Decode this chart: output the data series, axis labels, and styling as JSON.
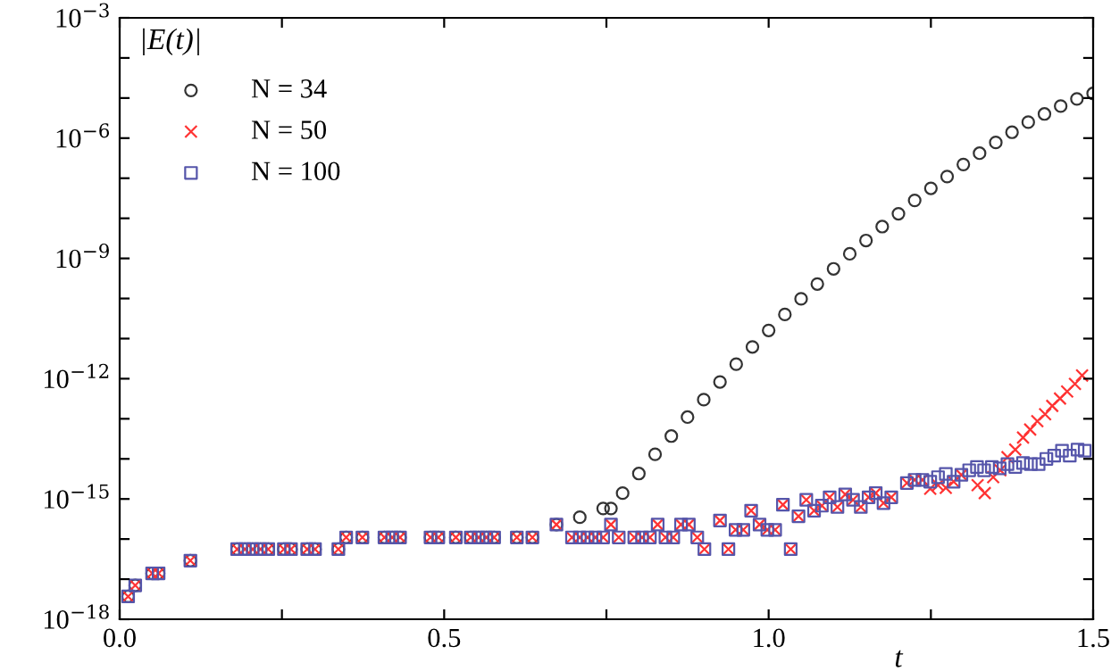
{
  "chart_data": {
    "type": "scatter",
    "xlabel": "t",
    "ylabel": "|E(t)|",
    "log": "y",
    "legend": "top left",
    "grid": false,
    "xlim": [
      0,
      1.5
    ],
    "xticks": [
      {
        "value": 0,
        "label": "0.0"
      },
      {
        "value": 0.25,
        "label": null
      },
      {
        "value": 0.5,
        "label": "0.5"
      },
      {
        "value": 0.75,
        "label": null
      },
      {
        "value": 1.0,
        "label": "1.0"
      },
      {
        "value": 1.25,
        "label": null
      },
      {
        "value": 1.5,
        "label": "1.5"
      }
    ],
    "ylim": [
      1e-18,
      0.001
    ],
    "yticks": [
      {
        "value": 1e-18,
        "label": "10$^{−18}$"
      },
      {
        "value": 1e-17,
        "label": null
      },
      {
        "value": 1e-16,
        "label": null
      },
      {
        "value": 1e-15,
        "label": "10$^{−15}$"
      },
      {
        "value": 1e-14,
        "label": null
      },
      {
        "value": 1e-13,
        "label": null
      },
      {
        "value": 1e-12,
        "label": "10$^{−12}$"
      },
      {
        "value": 1e-11,
        "label": null
      },
      {
        "value": 1e-10,
        "label": null
      },
      {
        "value": 1e-09,
        "label": "10$^{−9}$"
      },
      {
        "value": 1e-08,
        "label": null
      },
      {
        "value": 1e-07,
        "label": null
      },
      {
        "value": 1e-06,
        "label": "10$^{−6}$"
      },
      {
        "value": 1e-05,
        "label": null
      },
      {
        "value": 0.0001,
        "label": null
      },
      {
        "value": 0.001,
        "label": "10$^{−3}$"
      }
    ],
    "series": [
      {
        "name": "N = 34",
        "color": "#333333",
        "marker": "circle",
        "x": [
          0.013,
          0.024,
          0.05,
          0.06,
          0.109,
          0.181,
          0.193,
          0.205,
          0.217,
          0.229,
          0.253,
          0.264,
          0.289,
          0.301,
          0.337,
          0.349,
          0.374,
          0.408,
          0.42,
          0.432,
          0.479,
          0.491,
          0.518,
          0.541,
          0.553,
          0.565,
          0.577,
          0.612,
          0.636,
          0.673,
          0.709,
          0.745,
          0.757,
          0.775,
          0.8,
          0.825,
          0.85,
          0.875,
          0.9,
          0.925,
          0.95,
          0.975,
          1.0,
          1.025,
          1.05,
          1.075,
          1.1,
          1.125,
          1.15,
          1.175,
          1.2,
          1.225,
          1.25,
          1.275,
          1.3,
          1.325,
          1.35,
          1.375,
          1.4,
          1.425,
          1.45,
          1.475,
          1.5
        ],
        "values": [
          3.7e-18,
          7e-18,
          1.4e-17,
          1.4e-17,
          2.9e-17,
          5.6e-17,
          5.6e-17,
          5.6e-17,
          5.6e-17,
          5.6e-17,
          5.6e-17,
          5.6e-17,
          5.6e-17,
          5.6e-17,
          5.6e-17,
          1.1e-16,
          1.1e-16,
          1.1e-16,
          1.1e-16,
          1.1e-16,
          1.1e-16,
          1.1e-16,
          1.1e-16,
          1.1e-16,
          1.1e-16,
          1.1e-16,
          1.1e-16,
          1.1e-16,
          1.1e-16,
          2.3e-16,
          3.5e-16,
          5.8e-16,
          5.8e-16,
          1.4e-15,
          4.3e-15,
          1.3e-14,
          3.7e-14,
          1.1e-13,
          3e-13,
          8.3e-13,
          2.3e-12,
          6.2e-12,
          1.6e-11,
          4e-11,
          9.8e-11,
          2.3e-10,
          5.5e-10,
          1.3e-09,
          2.8e-09,
          6.2e-09,
          1.3e-08,
          2.8e-08,
          5.6e-08,
          1.1e-07,
          2.2e-07,
          4.2e-07,
          7.8e-07,
          1.4e-06,
          2.5e-06,
          4e-06,
          6.3e-06,
          9.5e-06,
          1.3e-05
        ]
      },
      {
        "name": "N = 50",
        "color": "#ff3333",
        "marker": "cross",
        "x": [
          0.013,
          0.024,
          0.05,
          0.06,
          0.109,
          0.181,
          0.193,
          0.205,
          0.217,
          0.229,
          0.253,
          0.264,
          0.289,
          0.301,
          0.337,
          0.349,
          0.374,
          0.408,
          0.42,
          0.432,
          0.479,
          0.491,
          0.518,
          0.541,
          0.553,
          0.565,
          0.577,
          0.612,
          0.636,
          0.673,
          0.697,
          0.709,
          0.721,
          0.733,
          0.745,
          0.757,
          0.769,
          0.793,
          0.805,
          0.817,
          0.829,
          0.841,
          0.853,
          0.865,
          0.877,
          0.89,
          0.901,
          0.925,
          0.938,
          0.949,
          0.961,
          0.973,
          0.986,
          0.998,
          1.01,
          1.022,
          1.034,
          1.046,
          1.058,
          1.07,
          1.082,
          1.094,
          1.106,
          1.118,
          1.13,
          1.142,
          1.154,
          1.165,
          1.177,
          1.189,
          1.213,
          1.225,
          1.237,
          1.249,
          1.261,
          1.273,
          1.285,
          1.297,
          1.322,
          1.333,
          1.346,
          1.357,
          1.368,
          1.38,
          1.392,
          1.403,
          1.414,
          1.426,
          1.437,
          1.449,
          1.46,
          1.472,
          1.483
        ],
        "values": [
          3.7e-18,
          7e-18,
          1.4e-17,
          1.4e-17,
          2.9e-17,
          5.6e-17,
          5.6e-17,
          5.6e-17,
          5.6e-17,
          5.6e-17,
          5.6e-17,
          5.6e-17,
          5.6e-17,
          5.6e-17,
          5.6e-17,
          1.1e-16,
          1.1e-16,
          1.1e-16,
          1.1e-16,
          1.1e-16,
          1.1e-16,
          1.1e-16,
          1.1e-16,
          1.1e-16,
          1.1e-16,
          1.1e-16,
          1.1e-16,
          1.1e-16,
          1.1e-16,
          2.3e-16,
          1.1e-16,
          1.1e-16,
          1.1e-16,
          1.1e-16,
          1.1e-16,
          2.3e-16,
          1.1e-16,
          1.1e-16,
          1.1e-16,
          1.1e-16,
          2.3e-16,
          1.1e-16,
          1.1e-16,
          2.3e-16,
          2.3e-16,
          1.1e-16,
          5.6e-17,
          2.9e-16,
          5.6e-17,
          1.7e-16,
          1.7e-16,
          5.1e-16,
          2.3e-16,
          1.7e-16,
          1.7e-16,
          7.2e-16,
          5.6e-17,
          3.7e-16,
          9.5e-16,
          5.1e-16,
          6.8e-16,
          1.1e-15,
          6.3e-16,
          1.3e-15,
          9.5e-16,
          6.3e-16,
          1.1e-15,
          1.4e-15,
          7.9e-16,
          1.1e-15,
          2.5e-15,
          3e-15,
          3e-15,
          1.8e-15,
          2.2e-15,
          1.9e-15,
          2.7e-15,
          4e-15,
          2.2e-15,
          1.4e-15,
          3.5e-15,
          5.2e-15,
          1.1e-14,
          1.7e-14,
          3.4e-14,
          5.4e-14,
          8.7e-14,
          1.3e-13,
          2.1e-13,
          3.2e-13,
          4.8e-13,
          7.4e-13,
          1.2e-12
        ]
      },
      {
        "name": "N = 100",
        "color": "#5555aa",
        "marker": "square",
        "x": [
          0.013,
          0.024,
          0.05,
          0.06,
          0.109,
          0.181,
          0.193,
          0.205,
          0.217,
          0.229,
          0.253,
          0.264,
          0.289,
          0.301,
          0.337,
          0.349,
          0.374,
          0.408,
          0.42,
          0.432,
          0.479,
          0.491,
          0.518,
          0.541,
          0.553,
          0.565,
          0.577,
          0.612,
          0.636,
          0.673,
          0.697,
          0.709,
          0.721,
          0.733,
          0.745,
          0.757,
          0.769,
          0.793,
          0.805,
          0.817,
          0.829,
          0.841,
          0.853,
          0.865,
          0.877,
          0.89,
          0.901,
          0.925,
          0.938,
          0.949,
          0.961,
          0.973,
          0.986,
          0.998,
          1.01,
          1.022,
          1.034,
          1.046,
          1.058,
          1.07,
          1.082,
          1.094,
          1.106,
          1.118,
          1.13,
          1.142,
          1.154,
          1.165,
          1.177,
          1.189,
          1.213,
          1.225,
          1.237,
          1.249,
          1.261,
          1.273,
          1.285,
          1.297,
          1.309,
          1.321,
          1.332,
          1.344,
          1.356,
          1.368,
          1.38,
          1.392,
          1.404,
          1.416,
          1.428,
          1.44,
          1.452,
          1.464,
          1.476,
          1.487
        ],
        "values": [
          3.7e-18,
          7e-18,
          1.4e-17,
          1.4e-17,
          2.9e-17,
          5.6e-17,
          5.6e-17,
          5.6e-17,
          5.6e-17,
          5.6e-17,
          5.6e-17,
          5.6e-17,
          5.6e-17,
          5.6e-17,
          5.6e-17,
          1.1e-16,
          1.1e-16,
          1.1e-16,
          1.1e-16,
          1.1e-16,
          1.1e-16,
          1.1e-16,
          1.1e-16,
          1.1e-16,
          1.1e-16,
          1.1e-16,
          1.1e-16,
          1.1e-16,
          1.1e-16,
          2.3e-16,
          1.1e-16,
          1.1e-16,
          1.1e-16,
          1.1e-16,
          1.1e-16,
          2.3e-16,
          1.1e-16,
          1.1e-16,
          1.1e-16,
          1.1e-16,
          2.3e-16,
          1.1e-16,
          1.1e-16,
          2.3e-16,
          2.3e-16,
          1.1e-16,
          5.6e-17,
          2.9e-16,
          5.6e-17,
          1.7e-16,
          1.7e-16,
          5.1e-16,
          2.3e-16,
          1.7e-16,
          1.7e-16,
          7.2e-16,
          5.6e-17,
          3.7e-16,
          9.5e-16,
          5.1e-16,
          6.8e-16,
          1.1e-15,
          6.3e-16,
          1.3e-15,
          9.5e-16,
          6.3e-16,
          1.1e-15,
          1.4e-15,
          7.9e-16,
          1.1e-15,
          2.5e-15,
          3e-15,
          3e-15,
          2.7e-15,
          3.5e-15,
          4.2e-15,
          2.7e-15,
          4e-15,
          5.2e-15,
          6.3e-15,
          5.2e-15,
          6.3e-15,
          5.8e-15,
          7.4e-15,
          6.3e-15,
          7.9e-15,
          7.4e-15,
          7.4e-15,
          1e-14,
          1.2e-14,
          1.6e-14,
          1.2e-14,
          1.7e-14,
          1.6e-14
        ]
      }
    ]
  }
}
